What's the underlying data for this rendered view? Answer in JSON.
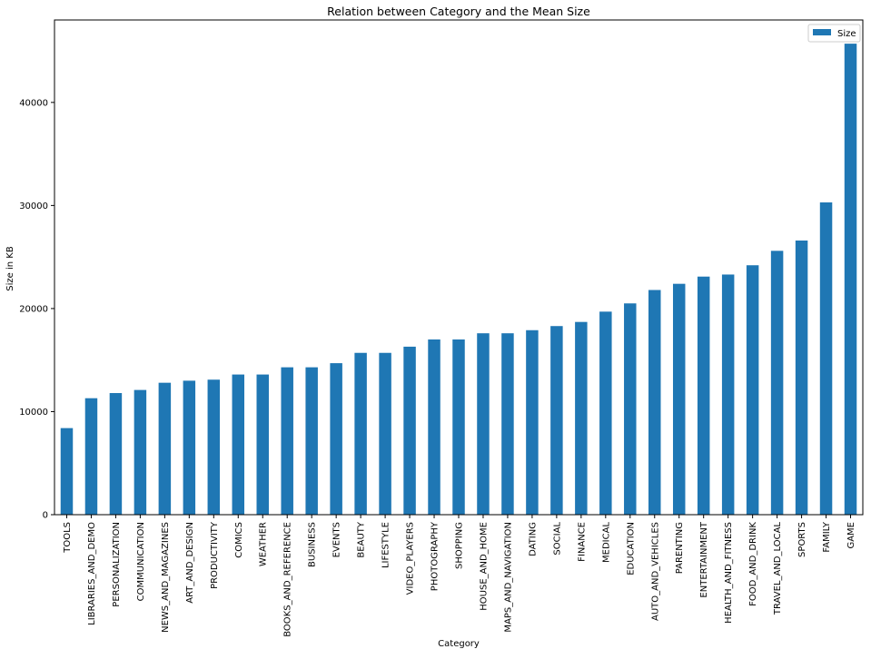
{
  "chart_data": {
    "type": "bar",
    "title": "Relation between Category and the Mean Size",
    "xlabel": "Category",
    "ylabel": "Size in KB",
    "ylim": [
      0,
      48000
    ],
    "yticks": [
      0,
      10000,
      20000,
      30000,
      40000
    ],
    "grid": false,
    "legend_position": "top-right",
    "bar_color": "#1f77b4",
    "categories": [
      "TOOLS",
      "LIBRARIES_AND_DEMO",
      "PERSONALIZATION",
      "COMMUNICATION",
      "NEWS_AND_MAGAZINES",
      "ART_AND_DESIGN",
      "PRODUCTIVITY",
      "COMICS",
      "WEATHER",
      "BOOKS_AND_REFERENCE",
      "BUSINESS",
      "EVENTS",
      "BEAUTY",
      "LIFESTYLE",
      "VIDEO_PLAYERS",
      "PHOTOGRAPHY",
      "SHOPPING",
      "HOUSE_AND_HOME",
      "MAPS_AND_NAVIGATION",
      "DATING",
      "SOCIAL",
      "FINANCE",
      "MEDICAL",
      "EDUCATION",
      "AUTO_AND_VEHICLES",
      "PARENTING",
      "ENTERTAINMENT",
      "HEALTH_AND_FITNESS",
      "FOOD_AND_DRINK",
      "TRAVEL_AND_LOCAL",
      "SPORTS",
      "FAMILY",
      "GAME"
    ],
    "series": [
      {
        "name": "Size",
        "values": [
          8400,
          11300,
          11800,
          12100,
          12800,
          13000,
          13100,
          13600,
          13600,
          14300,
          14300,
          14700,
          15700,
          15700,
          16300,
          17000,
          17000,
          17600,
          17600,
          17900,
          18300,
          18700,
          19700,
          20500,
          21800,
          22400,
          23100,
          23300,
          24200,
          25600,
          26600,
          30300,
          45700
        ]
      }
    ]
  }
}
